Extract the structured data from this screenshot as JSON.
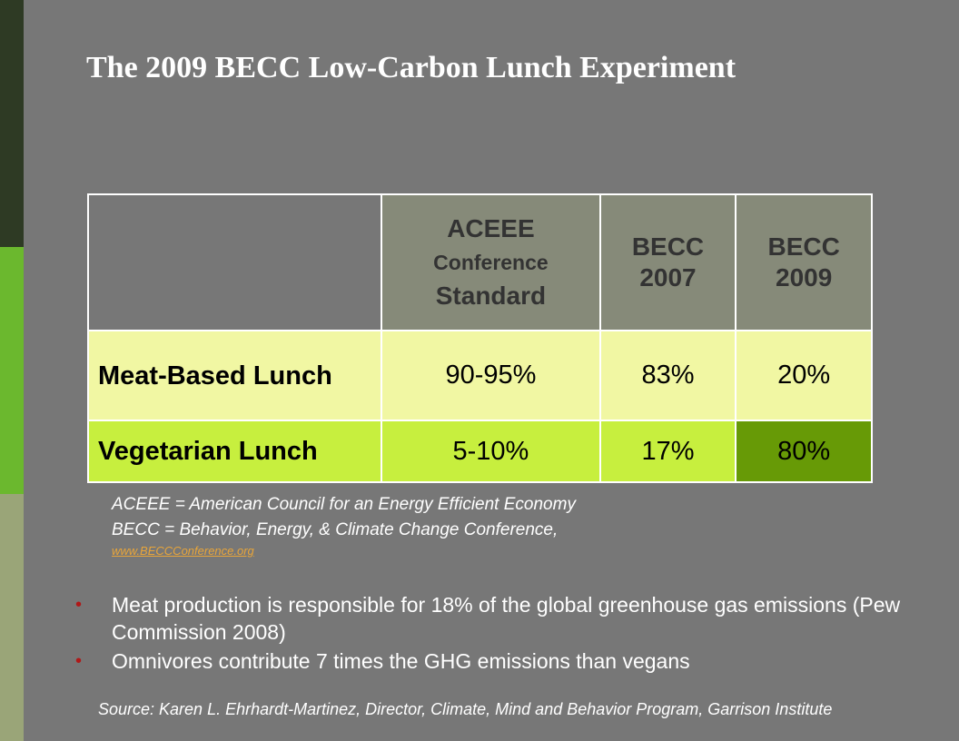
{
  "title": "The 2009 BECC Low-Carbon Lunch Experiment",
  "table": {
    "headers": {
      "aceee_line1": "ACEEE",
      "aceee_line2": "Conference",
      "aceee_line3": "Standard",
      "becc2007_line1": "BECC",
      "becc2007_line2": "2007",
      "becc2009_line1": "BECC",
      "becc2009_line2": "2009"
    },
    "rows": [
      {
        "label": "Meat-Based Lunch",
        "aceee": "90-95%",
        "becc2007": "83%",
        "becc2009": "20%"
      },
      {
        "label": "Vegetarian Lunch",
        "aceee": "5-10%",
        "becc2007": "17%",
        "becc2009": "80%"
      }
    ]
  },
  "notes": {
    "aceee": "ACEEE = American Council for an Energy Efficient Economy",
    "becc": "BECC = Behavior, Energy, & Climate Change Conference,",
    "link": "www.BECCConference.org"
  },
  "bullets": [
    "Meat production is responsible for 18% of the global greenhouse gas emissions (Pew Commission 2008)",
    "Omnivores contribute 7 times the GHG emissions than vegans"
  ],
  "source": "Source: Karen L. Ehrhardt-Martinez, Director, Climate, Mind and Behavior Program, Garrison Institute",
  "colors": {
    "background": "#777777",
    "header_cell": "#868a79",
    "meat_row": "#f1f7a3",
    "veg_row": "#c7ef3e",
    "highlight": "#679a06",
    "bullet": "#b01818",
    "link": "#e8a53a"
  }
}
